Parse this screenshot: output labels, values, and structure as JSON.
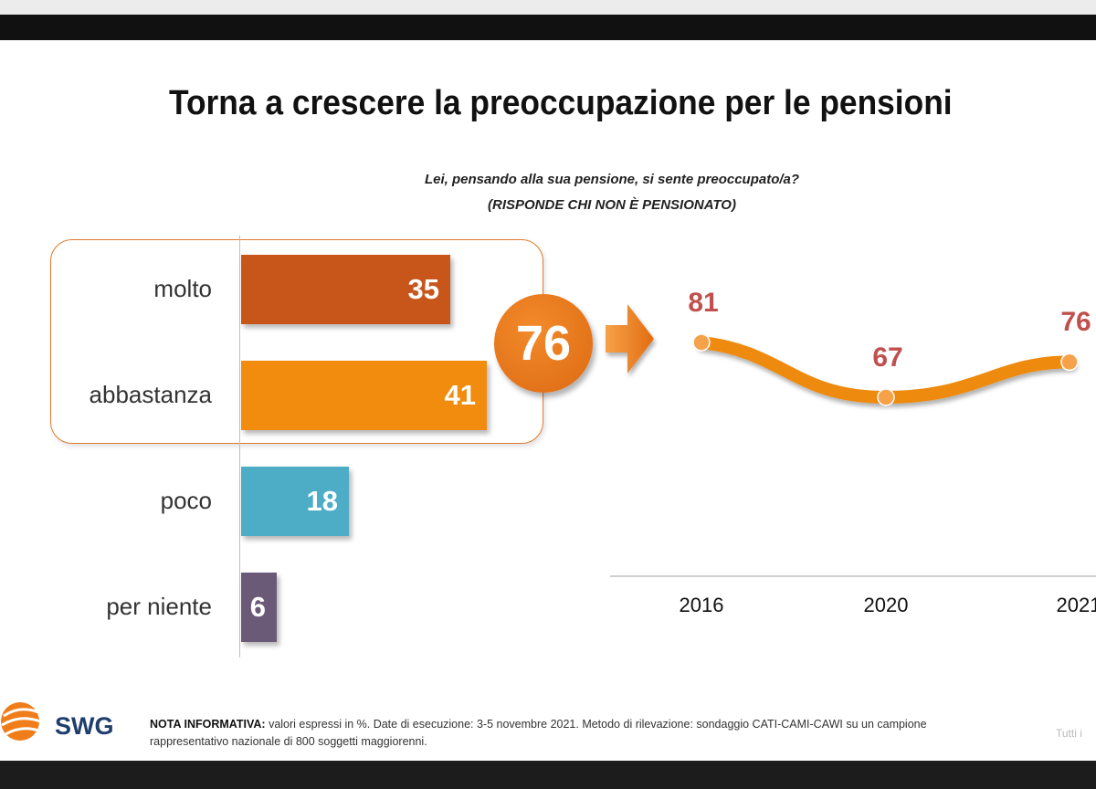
{
  "title": "Torna a crescere la preoccupazione per le pensioni",
  "subtitle_line1": "Lei, pensando alla sua pensione, si sente preoccupato/a?",
  "subtitle_line2": "(RISPONDE CHI NON È PENSIONATO)",
  "total_label": "76",
  "colors": {
    "molto": "#c8561a",
    "abbastanza": "#f28c0f",
    "poco": "#4dacc6",
    "per_niente": "#6a5a78",
    "line": "#ee8a10",
    "value_text": "#c0504d"
  },
  "chart_data": [
    {
      "type": "bar",
      "orientation": "horizontal",
      "categories": [
        "molto",
        "abbastanza",
        "poco",
        "per niente"
      ],
      "values": [
        35,
        41,
        18,
        6
      ],
      "xlim": [
        0,
        50
      ],
      "highlight_group": [
        "molto",
        "abbastanza"
      ],
      "highlight_total": 76
    },
    {
      "type": "line",
      "x": [
        "2016",
        "2020",
        "2021"
      ],
      "values": [
        81,
        67,
        76
      ]
    }
  ],
  "footer": {
    "brand": "SWG",
    "note_label": "NOTA INFORMATIVA:",
    "note_text": " valori espressi in %. Date di esecuzione: 3-5 novembre 2021. Metodo di rilevazione: sondaggio CATI-CAMI-CAWI su un campione rappresentativo nazionale di 800 soggetti maggiorenni.",
    "right_text": "Tutti i"
  }
}
